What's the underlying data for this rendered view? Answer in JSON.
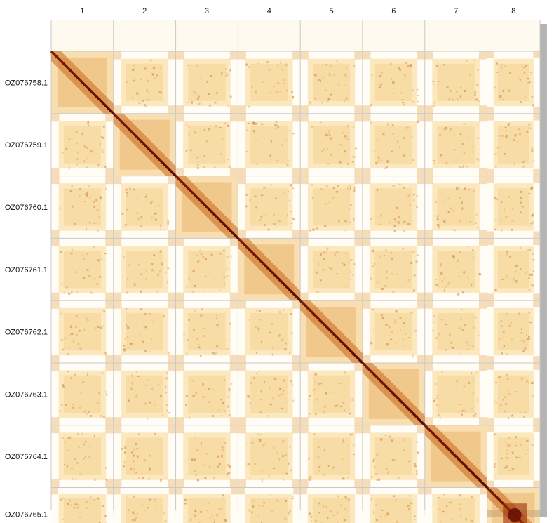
{
  "chart_data": {
    "type": "heatmap",
    "title": "",
    "xlabel": "",
    "ylabel": "",
    "column_labels": [
      "1",
      "2",
      "3",
      "4",
      "5",
      "6",
      "7",
      "8"
    ],
    "row_labels": [
      "OZ076758.1",
      "OZ076759.1",
      "OZ076760.1",
      "OZ076761.1",
      "OZ076762.1",
      "OZ076763.1",
      "OZ076764.1",
      "OZ076765.1"
    ],
    "relative_sizes": [
      1,
      1,
      1,
      1,
      1,
      1,
      1,
      0.85
    ],
    "colorscale": [
      "#ffffff",
      "#fbe6b8",
      "#f2c77c",
      "#e4a04a",
      "#c86a1f",
      "#9b3208",
      "#6a1104"
    ],
    "grid": true
  }
}
